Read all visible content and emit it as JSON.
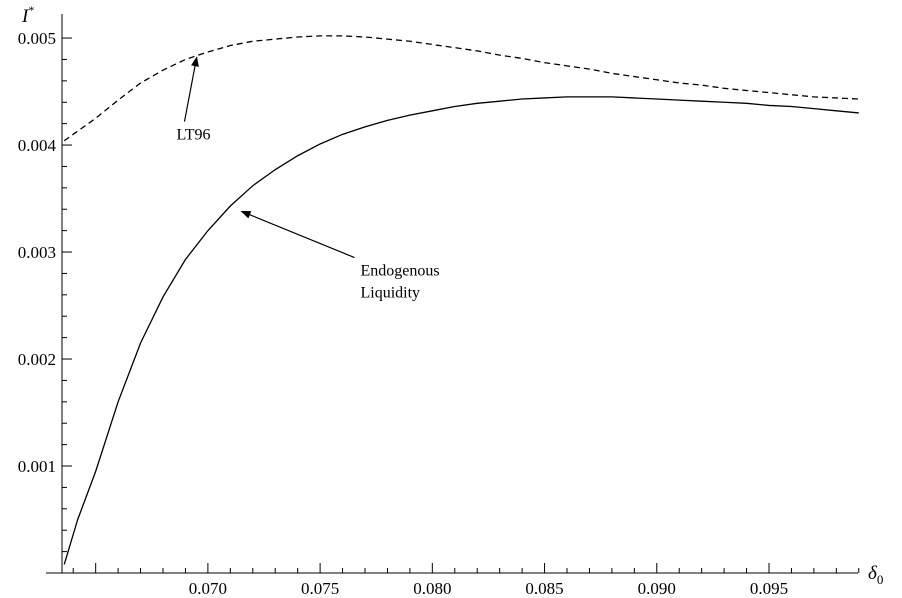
{
  "chart_data": {
    "type": "line",
    "xlabel": "δ",
    "xlabel_subscript": "0",
    "ylabel": "I",
    "ylabel_superscript": "*",
    "xlim": [
      0.0635,
      0.0995
    ],
    "ylim": [
      0.0,
      0.00515
    ],
    "x_ticks": [
      0.07,
      0.075,
      0.08,
      0.085,
      0.09,
      0.095
    ],
    "x_tick_labels": [
      "0.070",
      "0.075",
      "0.080",
      "0.085",
      "0.090",
      "0.095"
    ],
    "y_ticks": [
      0.001,
      0.002,
      0.003,
      0.004,
      0.005
    ],
    "y_tick_labels": [
      "0.001",
      "0.002",
      "0.003",
      "0.004",
      "0.005"
    ],
    "grid": false,
    "legend": "none",
    "series": [
      {
        "name": "Endogenous Liquidity",
        "style": "solid",
        "color": "#000000",
        "x": [
          0.0636,
          0.0642,
          0.065,
          0.066,
          0.067,
          0.068,
          0.069,
          0.07,
          0.071,
          0.072,
          0.073,
          0.074,
          0.075,
          0.076,
          0.077,
          0.078,
          0.079,
          0.08,
          0.081,
          0.082,
          0.083,
          0.084,
          0.085,
          0.086,
          0.087,
          0.088,
          0.089,
          0.09,
          0.091,
          0.092,
          0.093,
          0.094,
          0.095,
          0.096,
          0.097,
          0.098,
          0.099
        ],
        "y": [
          8e-05,
          0.0005,
          0.00095,
          0.0016,
          0.00215,
          0.00258,
          0.00293,
          0.0032,
          0.00343,
          0.00362,
          0.00377,
          0.0039,
          0.00401,
          0.0041,
          0.00417,
          0.00423,
          0.00428,
          0.00432,
          0.00436,
          0.00439,
          0.00441,
          0.00443,
          0.00444,
          0.00445,
          0.00445,
          0.00445,
          0.00444,
          0.00443,
          0.00442,
          0.00441,
          0.0044,
          0.00439,
          0.00437,
          0.00436,
          0.00434,
          0.00432,
          0.0043
        ]
      },
      {
        "name": "LT96",
        "style": "dashed",
        "color": "#000000",
        "x": [
          0.0636,
          0.065,
          0.066,
          0.067,
          0.068,
          0.069,
          0.07,
          0.071,
          0.072,
          0.073,
          0.074,
          0.075,
          0.076,
          0.077,
          0.078,
          0.079,
          0.08,
          0.081,
          0.082,
          0.083,
          0.084,
          0.085,
          0.086,
          0.087,
          0.088,
          0.089,
          0.09,
          0.091,
          0.092,
          0.093,
          0.094,
          0.095,
          0.096,
          0.097,
          0.098,
          0.099
        ],
        "y": [
          0.00404,
          0.00425,
          0.00442,
          0.00458,
          0.0047,
          0.0048,
          0.00487,
          0.00493,
          0.00497,
          0.00499,
          0.00501,
          0.00502,
          0.00502,
          0.00501,
          0.00499,
          0.00497,
          0.00494,
          0.00491,
          0.00488,
          0.00484,
          0.00481,
          0.00477,
          0.00474,
          0.00471,
          0.00467,
          0.00464,
          0.00461,
          0.00458,
          0.00456,
          0.00453,
          0.00451,
          0.00449,
          0.00447,
          0.00445,
          0.00444,
          0.00443
        ]
      }
    ],
    "annotations": [
      {
        "lines": [
          "LT96"
        ],
        "series": "LT96",
        "text_x": 0.0686,
        "text_y": 0.00405,
        "point_x": 0.0695,
        "point_y": 0.00482
      },
      {
        "lines": [
          "Endogenous",
          "Liquidity"
        ],
        "series": "Endogenous Liquidity",
        "text_x": 0.0768,
        "text_y": 0.00278,
        "point_x": 0.0715,
        "point_y": 0.00338
      }
    ]
  }
}
